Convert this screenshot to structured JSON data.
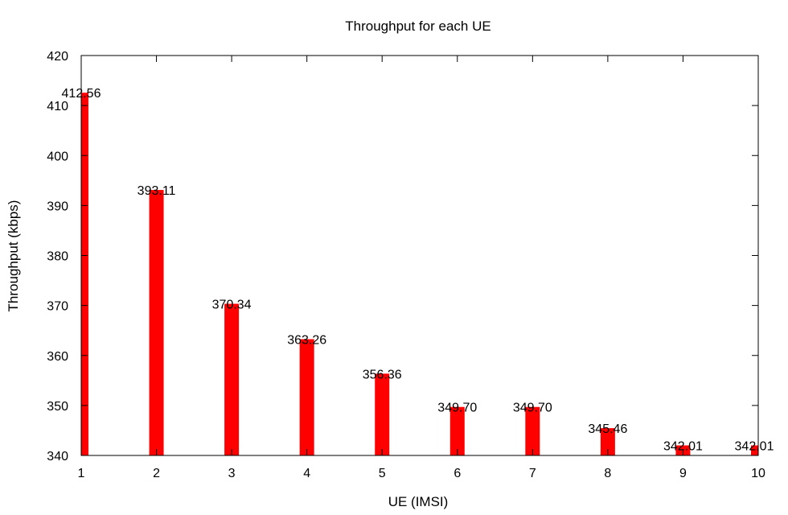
{
  "chart_data": {
    "type": "bar",
    "title": "Throughput for each UE",
    "xlabel": "UE (IMSI)",
    "ylabel": "Throughput (kbps)",
    "categories": [
      "1",
      "2",
      "3",
      "4",
      "5",
      "6",
      "7",
      "8",
      "9",
      "10"
    ],
    "x": [
      1,
      2,
      3,
      4,
      5,
      6,
      7,
      8,
      9,
      10
    ],
    "values": [
      412.56,
      393.11,
      370.34,
      363.26,
      356.36,
      349.7,
      349.7,
      345.46,
      342.01,
      342.01
    ],
    "value_labels": [
      "412.56",
      "393.11",
      "370.34",
      "363.26",
      "356.36",
      "349.70",
      "349.70",
      "345.46",
      "342.01",
      "342.01"
    ],
    "xlim": [
      1,
      10
    ],
    "ylim": [
      340,
      420
    ],
    "yticks": [
      340,
      350,
      360,
      370,
      380,
      390,
      400,
      410,
      420
    ],
    "ytick_labels": [
      "340",
      "350",
      "360",
      "370",
      "380",
      "390",
      "400",
      "410",
      "420"
    ],
    "xtick_labels": [
      "1",
      "2",
      "3",
      "4",
      "5",
      "6",
      "7",
      "8",
      "9",
      "10"
    ],
    "bar_color": "#ff0000",
    "grid": false,
    "legend": "none"
  }
}
